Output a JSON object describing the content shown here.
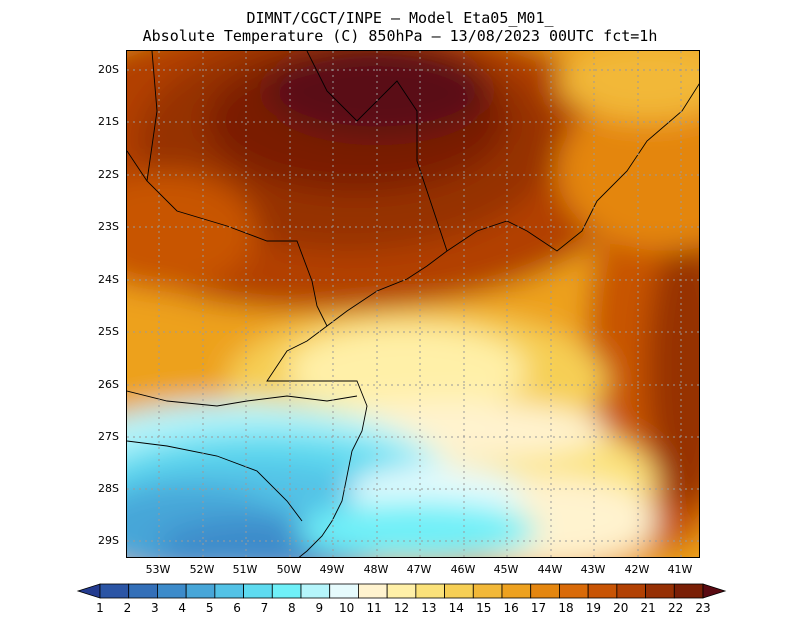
{
  "header": {
    "title_line1": "DIMNT/CGCT/INPE –  Model Eta05_M01_",
    "title_line2": "Absolute Temperature (C) 850hPa –  13/08/2023 00UTC fct=1h"
  },
  "map": {
    "field": "Absolute Temperature (C) 850hPa",
    "lat_labels": [
      "20S",
      "21S",
      "22S",
      "23S",
      "24S",
      "25S",
      "26S",
      "27S",
      "28S",
      "29S"
    ],
    "lon_labels": [
      "53W",
      "52W",
      "51W",
      "50W",
      "49W",
      "48W",
      "47W",
      "46W",
      "45W",
      "44W",
      "43W",
      "42W",
      "41W"
    ],
    "gridlines": "dotted grey"
  },
  "colorbar": {
    "labels": [
      "1",
      "2",
      "3",
      "4",
      "5",
      "6",
      "7",
      "8",
      "9",
      "10",
      "11",
      "12",
      "13",
      "14",
      "15",
      "16",
      "17",
      "18",
      "19",
      "20",
      "21",
      "22",
      "23"
    ],
    "colors": [
      "#233b8f",
      "#2b55a5",
      "#336fb8",
      "#3c8bca",
      "#47a6d8",
      "#52c2e6",
      "#5edbf0",
      "#6ff0f8",
      "#b5f5fb",
      "#e6fbfd",
      "#fff3cf",
      "#fff0a8",
      "#fbe27a",
      "#f6cf55",
      "#f2b838",
      "#eda11f",
      "#e4860f",
      "#d96a08",
      "#c85404",
      "#b24103",
      "#963004",
      "#7a1f06",
      "#5a0a12"
    ]
  }
}
